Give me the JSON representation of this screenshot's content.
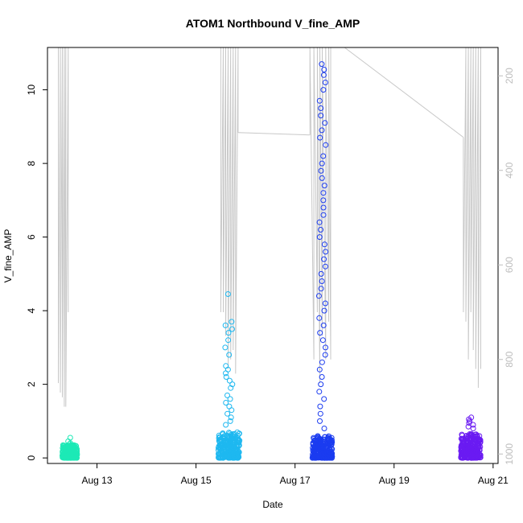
{
  "chart_data": {
    "type": "scatter",
    "title": "ATOM1 Northbound V_fine_AMP",
    "xlabel": "Date",
    "ylabel": "V_fine_AMP",
    "x_unit": "days (August)",
    "xlim": [
      12.0,
      21.1
    ],
    "ylim": [
      -0.15,
      11.15
    ],
    "x_ticks": [
      13,
      15,
      17,
      19,
      21
    ],
    "x_tick_labels": [
      "Aug 13",
      "Aug 15",
      "Aug 17",
      "Aug 19",
      "Aug 21"
    ],
    "y_ticks": [
      0,
      2,
      4,
      6,
      8,
      10
    ],
    "y_tick_labels": [
      "0",
      "2",
      "4",
      "6",
      "8",
      "10"
    ],
    "secondary_y": {
      "color": "#bdbdbd",
      "ticks": [
        200,
        400,
        600,
        800,
        1000
      ],
      "tick_labels": [
        "200",
        "400",
        "600",
        "800",
        "1000"
      ],
      "lim_top": 140,
      "lim_bottom": 1020,
      "inverted": true
    },
    "grid": false,
    "series": [
      {
        "color": "#1de9b6",
        "clusters": [
          {
            "x_range": [
              12.3,
              12.6
            ],
            "y_main": [
              0.0,
              0.35
            ],
            "spikes": [
              0.55,
              0.45,
              0.4,
              0.38
            ]
          }
        ]
      },
      {
        "color": "#1eb8f0",
        "clusters": [
          {
            "x_range": [
              15.45,
              15.88
            ],
            "y_main": [
              0.0,
              0.7
            ],
            "spikes": [
              4.45,
              3.7,
              3.6,
              3.5,
              3.4,
              3.2,
              3.0,
              2.8,
              2.5,
              2.4,
              2.3,
              2.2,
              2.1,
              2.0,
              1.9,
              1.7,
              1.6,
              1.5,
              1.4,
              1.3,
              1.2,
              1.1,
              1.0,
              0.9
            ]
          }
        ]
      },
      {
        "color": "#1b3cf0",
        "clusters": [
          {
            "x_range": [
              17.35,
              17.75
            ],
            "y_main": [
              0.0,
              0.6
            ],
            "spikes": [
              10.7,
              10.55,
              10.4,
              10.2,
              10.0,
              9.7,
              9.5,
              9.3,
              9.1,
              8.9,
              8.7,
              8.5,
              8.2,
              8.0,
              7.8,
              7.6,
              7.4,
              7.2,
              7.0,
              6.8,
              6.6,
              6.4,
              6.2,
              6.0,
              5.8,
              5.6,
              5.4,
              5.2,
              5.0,
              4.8,
              4.6,
              4.4,
              4.2,
              4.0,
              3.8,
              3.6,
              3.4,
              3.2,
              3.0,
              2.8,
              2.6,
              2.4,
              2.2,
              2.0,
              1.8,
              1.6,
              1.4,
              1.2,
              1.0,
              0.8
            ]
          }
        ]
      },
      {
        "color": "#6a1bf2",
        "clusters": [
          {
            "x_range": [
              20.35,
              20.75
            ],
            "y_main": [
              0.0,
              0.65
            ],
            "spikes": [
              1.1,
              1.05,
              1.0,
              0.95,
              0.9,
              0.85,
              0.8
            ]
          }
        ]
      }
    ],
    "secondary_trace": {
      "color": "#c8c8c8",
      "segments": [
        {
          "x": [
            12.22,
            12.22,
            12.26,
            12.26,
            12.3,
            12.3,
            12.34,
            12.34,
            12.37,
            12.37,
            12.42,
            12.42
          ],
          "y2": [
            140,
            850,
            140,
            870,
            140,
            880,
            140,
            900,
            140,
            900,
            140,
            700
          ]
        },
        {
          "x": [
            15.5,
            15.5,
            15.55,
            15.55,
            15.6,
            15.6,
            15.65,
            15.65,
            15.7,
            15.7,
            15.75,
            15.75,
            15.8,
            15.8,
            15.85,
            15.85
          ],
          "y2": [
            140,
            700,
            140,
            700,
            140,
            750,
            140,
            820,
            140,
            800,
            140,
            780,
            140,
            830,
            140,
            320
          ]
        },
        {
          "x": [
            15.85,
            17.3
          ],
          "y2": [
            320,
            325
          ]
        },
        {
          "x": [
            17.3,
            17.3,
            17.38,
            17.38,
            17.45,
            17.45,
            17.5,
            17.5,
            17.55,
            17.55,
            17.62,
            17.62,
            17.68,
            17.68,
            17.72,
            17.72,
            18.0
          ],
          "y2": [
            325,
            140,
            800,
            140,
            700,
            140,
            850,
            140,
            750,
            140,
            800,
            140,
            720,
            140,
            800,
            140,
            140
          ]
        },
        {
          "x": [
            18.0,
            20.4
          ],
          "y2": [
            140,
            330
          ]
        },
        {
          "x": [
            20.4,
            20.4,
            20.45,
            20.45,
            20.5,
            20.5,
            20.55,
            20.55,
            20.6,
            20.6,
            20.65,
            20.65,
            20.7,
            20.7,
            20.75,
            20.75
          ],
          "y2": [
            330,
            700,
            140,
            720,
            140,
            800,
            140,
            700,
            140,
            780,
            140,
            820,
            140,
            860,
            140,
            820
          ]
        }
      ]
    }
  }
}
